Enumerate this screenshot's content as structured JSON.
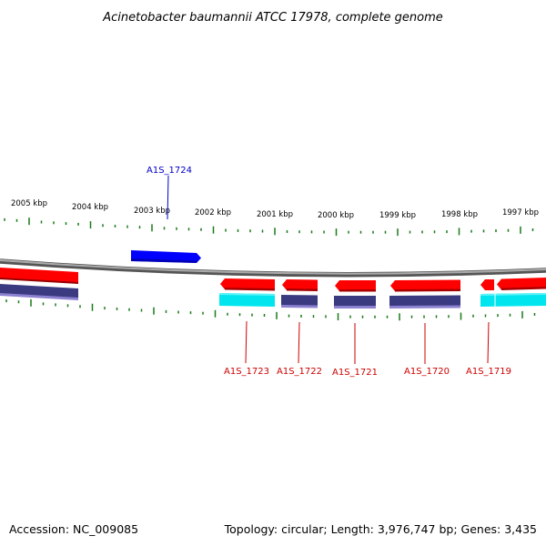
{
  "title": "Acinetobacter baumannii ATCC 17978, complete genome",
  "footer": {
    "accession": "Accession: NC_009085",
    "summary": "Topology: circular; Length: 3,976,747 bp; Genes: 3,435"
  },
  "colors": {
    "forward_gene": "#0000ff",
    "reverse_gene": "#ff0000",
    "reverse_cds": "#33337a",
    "rna_track": "#00e5ee",
    "backbone": "#888888",
    "tick": "#1a7a1a",
    "label_forward": "#0000cc",
    "label_reverse": "#cc0000"
  },
  "scale_labels": [
    "2005 kbp",
    "2004 kbp",
    "2003 kbp",
    "2002 kbp",
    "2001 kbp",
    "2000 kbp",
    "1999 kbp",
    "1998 kbp",
    "1997 kbp"
  ],
  "gene_labels": [
    {
      "id": "A1S_1724",
      "strand": "forward"
    },
    {
      "id": "A1S_1723",
      "strand": "reverse"
    },
    {
      "id": "A1S_1722",
      "strand": "reverse"
    },
    {
      "id": "A1S_1721",
      "strand": "reverse"
    },
    {
      "id": "A1S_1720",
      "strand": "reverse"
    },
    {
      "id": "A1S_1719",
      "strand": "reverse"
    }
  ]
}
